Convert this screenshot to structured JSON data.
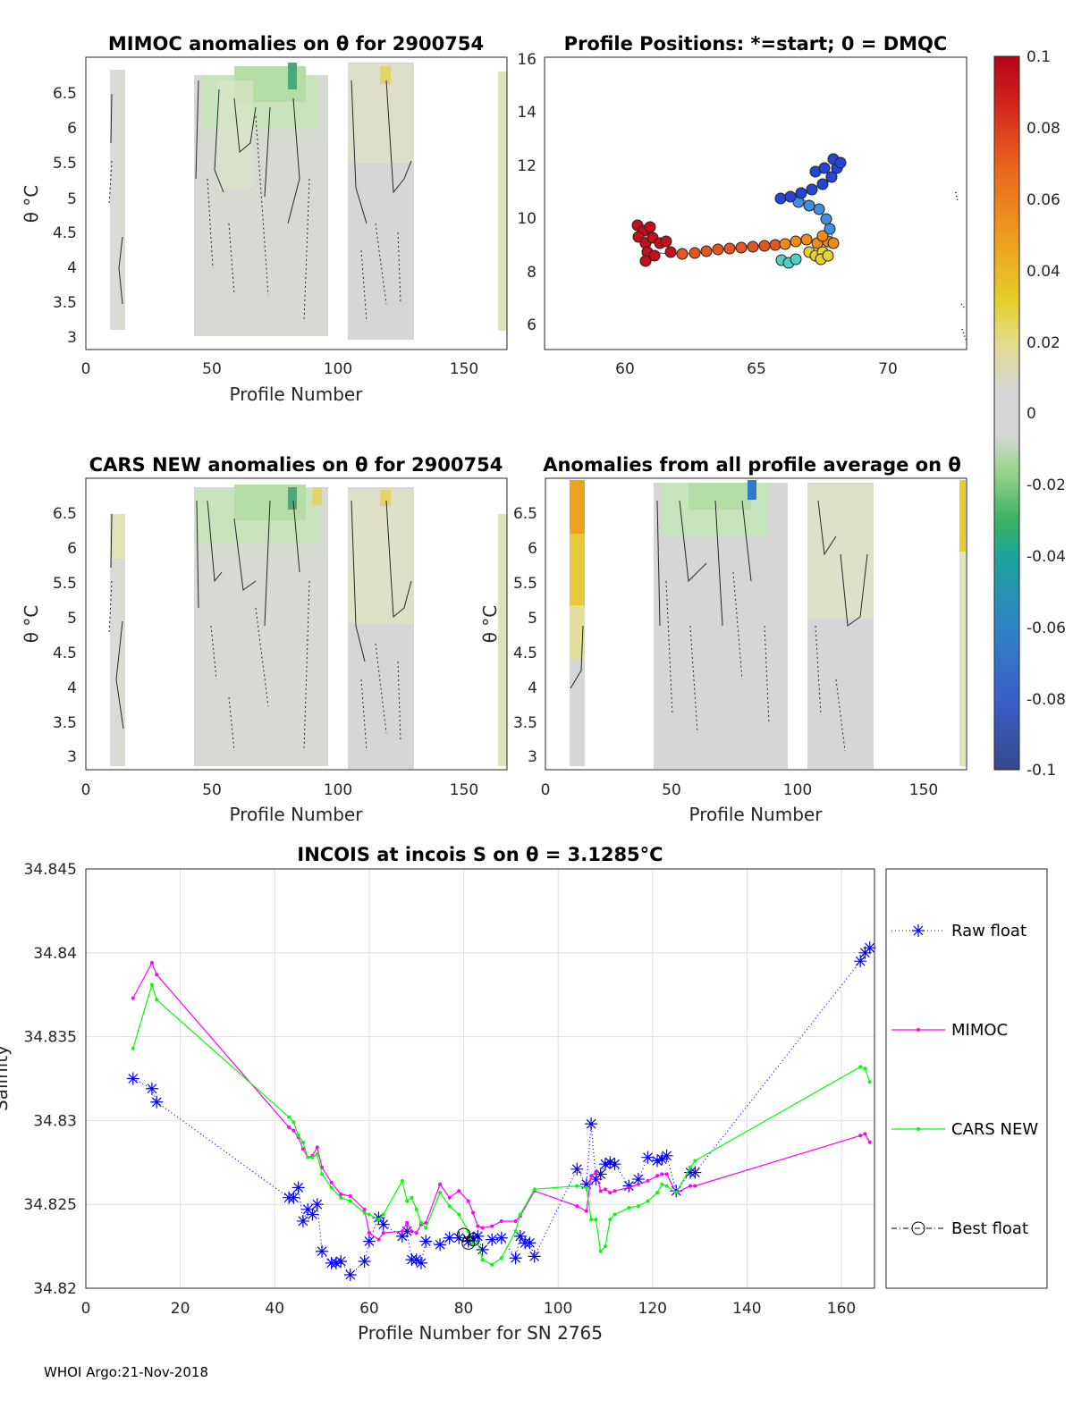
{
  "panels": {
    "mimoc": {
      "title": "MIMOC anomalies on θ  for 2900754",
      "xlabel": "Profile Number",
      "ylabel": "θ °C",
      "xticks": [
        "0",
        "50",
        "100",
        "150"
      ],
      "yticks": [
        "6.5",
        "6",
        "5.5",
        "5",
        "4.5",
        "4",
        "3.5",
        "3"
      ]
    },
    "positions": {
      "title": "Profile Positions: *=start; 0 = DMQC",
      "xticks": [
        "60",
        "65",
        "70"
      ],
      "yticks": [
        "16",
        "14",
        "12",
        "10",
        "8",
        "6"
      ]
    },
    "cars": {
      "title": "CARS NEW anomalies on θ for 2900754",
      "xlabel": "Profile Number",
      "ylabel": "θ °C",
      "xticks": [
        "0",
        "50",
        "100",
        "150"
      ],
      "yticks": [
        "6.5",
        "6",
        "5.5",
        "5",
        "4.5",
        "4",
        "3.5",
        "3"
      ]
    },
    "average": {
      "title": "Anomalies from all profile average on θ",
      "xlabel": "Profile Number",
      "ylabel": "θ °C",
      "xticks": [
        "0",
        "50",
        "100",
        "150"
      ],
      "yticks": [
        "6.5",
        "6",
        "5.5",
        "5",
        "4.5",
        "4",
        "3.5",
        "3"
      ]
    }
  },
  "colorbar": {
    "ticks": [
      "0.1",
      "0.08",
      "0.06",
      "0.04",
      "0.02",
      "0",
      "-0.02",
      "-0.04",
      "-0.06",
      "-0.08",
      "-0.1"
    ]
  },
  "chart_data": {
    "type": "line",
    "title": "INCOIS at incois S on θ = 3.1285°C",
    "xlabel": "Profile Number for SN 2765",
    "ylabel": "Salinity",
    "xlim": [
      0,
      167
    ],
    "ylim": [
      34.82,
      34.845
    ],
    "xticks": [
      "0",
      "20",
      "40",
      "60",
      "80",
      "100",
      "120",
      "140",
      "160"
    ],
    "yticks": [
      "34.845",
      "34.84",
      "34.835",
      "34.83",
      "34.825",
      "34.82"
    ],
    "legend": [
      "Raw float",
      "MIMOC",
      "CARS NEW",
      "Best float"
    ],
    "series": [
      {
        "name": "Raw float",
        "color": "#0000ff",
        "x": [
          10,
          14,
          15,
          43,
          44,
          45,
          46,
          47,
          48,
          49,
          50,
          52,
          53,
          54,
          56,
          59,
          60,
          62,
          63,
          67,
          68,
          69,
          70,
          71,
          72,
          75,
          77,
          79,
          81,
          82,
          83,
          84,
          86,
          88,
          91,
          92,
          93,
          94,
          95,
          104,
          106,
          107,
          108,
          109,
          110,
          111,
          112,
          115,
          117,
          119,
          121,
          122,
          123,
          125,
          128,
          129,
          164,
          165,
          166
        ],
        "values": [
          34.8325,
          34.8319,
          34.8311,
          34.8254,
          34.8254,
          34.826,
          34.824,
          34.8247,
          34.8244,
          34.825,
          34.8222,
          34.8215,
          34.8215,
          34.8216,
          34.8208,
          34.8216,
          34.8228,
          34.8242,
          34.8238,
          34.8231,
          34.8234,
          34.8217,
          34.8217,
          34.8215,
          34.8228,
          34.8226,
          34.823,
          34.823,
          34.8228,
          34.823,
          34.8231,
          34.8223,
          34.8229,
          34.823,
          34.8218,
          34.8231,
          34.8227,
          34.8227,
          34.8219,
          34.8271,
          34.8262,
          34.8298,
          34.8265,
          34.8268,
          34.8274,
          34.8275,
          34.8274,
          34.8261,
          34.8265,
          34.8278,
          34.8276,
          34.8277,
          34.8279,
          34.8258,
          34.8269,
          34.8269,
          34.8395,
          34.84,
          34.8403
        ]
      },
      {
        "name": "MIMOC",
        "color": "#ff00ff",
        "x": [
          10,
          14,
          15,
          43,
          44,
          45,
          46,
          47,
          48,
          49,
          50,
          52,
          54,
          56,
          59,
          60,
          62,
          63,
          67,
          68,
          69,
          70,
          71,
          72,
          75,
          77,
          79,
          81,
          82,
          83,
          84,
          86,
          88,
          91,
          92,
          95,
          104,
          106,
          107,
          108,
          109,
          110,
          111,
          112,
          115,
          117,
          119,
          121,
          122,
          123,
          125,
          128,
          129,
          164,
          165,
          166
        ],
        "values": [
          34.8373,
          34.8394,
          34.8387,
          34.8296,
          34.8294,
          34.829,
          34.8283,
          34.8278,
          34.8279,
          34.8284,
          34.8272,
          34.8263,
          34.8256,
          34.8255,
          34.8247,
          34.8233,
          34.8229,
          34.8233,
          34.8234,
          34.8239,
          34.8234,
          34.8233,
          34.8238,
          34.8239,
          34.8262,
          34.8254,
          34.8258,
          34.8252,
          34.8245,
          34.8237,
          34.8236,
          34.8237,
          34.824,
          34.824,
          34.8243,
          34.8258,
          34.8249,
          34.8246,
          34.8267,
          34.8269,
          34.8258,
          34.8259,
          34.8257,
          34.8258,
          34.826,
          34.8262,
          34.8264,
          34.8267,
          34.8268,
          34.8268,
          34.8257,
          34.8261,
          34.8261,
          34.8291,
          34.8292,
          34.8287
        ]
      },
      {
        "name": "CARS NEW",
        "color": "#00ff00",
        "x": [
          10,
          14,
          15,
          43,
          44,
          45,
          46,
          47,
          48,
          49,
          50,
          52,
          54,
          56,
          59,
          60,
          62,
          63,
          67,
          68,
          69,
          70,
          71,
          72,
          75,
          77,
          79,
          81,
          82,
          83,
          84,
          86,
          88,
          91,
          92,
          95,
          104,
          106,
          107,
          108,
          109,
          110,
          111,
          112,
          115,
          117,
          119,
          121,
          122,
          123,
          125,
          128,
          129,
          164,
          165,
          166
        ],
        "values": [
          34.8343,
          34.8381,
          34.8372,
          34.8302,
          34.8299,
          34.8291,
          34.8287,
          34.8278,
          34.8278,
          34.828,
          34.8268,
          34.826,
          34.8254,
          34.8252,
          34.8245,
          34.8244,
          34.8241,
          34.8244,
          34.8264,
          34.8252,
          34.8254,
          34.8247,
          34.8239,
          34.8236,
          34.8257,
          34.8249,
          34.8244,
          34.8234,
          34.8226,
          34.8227,
          34.8217,
          34.8214,
          34.8218,
          34.8234,
          34.8244,
          34.8259,
          34.8261,
          34.826,
          34.8241,
          34.8241,
          34.8222,
          34.8225,
          34.8241,
          34.8244,
          34.8248,
          34.8249,
          34.8252,
          34.8257,
          34.8262,
          34.8261,
          34.8257,
          34.8272,
          34.8276,
          34.8332,
          34.8331,
          34.8323
        ]
      },
      {
        "name": "Best float",
        "color": "#000000",
        "x": [
          80,
          81,
          82
        ],
        "values": [
          34.8232,
          34.8227,
          34.8229
        ]
      }
    ]
  },
  "footer": "WHOI Argo:21-Nov-2018"
}
